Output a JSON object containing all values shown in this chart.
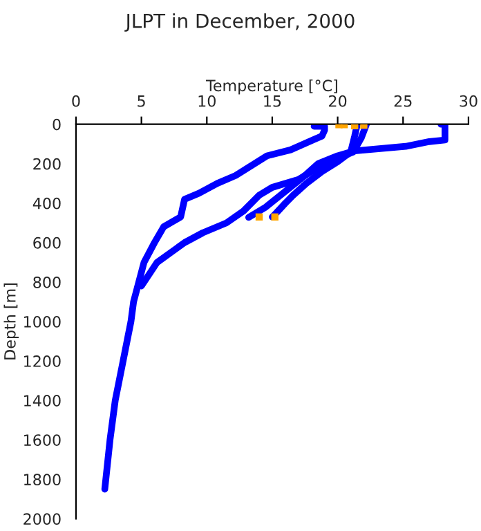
{
  "chart_data": {
    "type": "line",
    "title": "JLPT in December, 2000",
    "xlabel": "Temperature [°C]",
    "ylabel": "Depth [m]",
    "xlim": [
      0,
      30
    ],
    "xticks": [
      0,
      5,
      10,
      15,
      20,
      25,
      30
    ],
    "ylim": [
      2000,
      0
    ],
    "yticks": [
      0,
      200,
      400,
      600,
      800,
      1000,
      1200,
      1400,
      1600,
      1800,
      2000
    ],
    "grid": false,
    "legend": false,
    "marker": "none",
    "line_style": "solid",
    "series": [
      {
        "color": "#0000ff",
        "x": [
          18.2,
          19.0,
          19.0,
          18.8,
          18.1,
          16.4,
          14.6,
          13.4,
          12.2,
          10.8,
          9.4,
          8.3,
          8.0,
          6.7,
          6.0,
          5.2,
          4.8,
          4.4,
          4.2,
          3.9,
          3.6,
          3.3,
          3.0,
          2.6,
          2.2
        ],
        "values": [
          10,
          10,
          30,
          60,
          80,
          130,
          160,
          210,
          260,
          300,
          350,
          380,
          470,
          520,
          600,
          700,
          800,
          900,
          1000,
          1100,
          1200,
          1300,
          1400,
          1600,
          1850
        ]
      },
      {
        "color": "#0000ff",
        "x": [
          27.9,
          28.2,
          28.2,
          27.0,
          25.2,
          21.3,
          20.0,
          18.5,
          17.5,
          16.0,
          14.5,
          13.2
        ],
        "values": [
          0,
          0,
          80,
          88,
          112,
          135,
          160,
          200,
          260,
          340,
          420,
          472
        ]
      },
      {
        "color": "#0000ff",
        "x": [
          21.5,
          21.3,
          21.0,
          20.0,
          18.8,
          17.6,
          16.6,
          16.0,
          15.3,
          15.0
        ],
        "values": [
          0,
          60,
          140,
          190,
          240,
          300,
          360,
          400,
          450,
          470
        ]
      },
      {
        "color": "#0000ff",
        "x": [
          22.2,
          21.8,
          21.2,
          19.0,
          17.0,
          15.0,
          14.0,
          12.8,
          11.5,
          9.7,
          8.3,
          6.2,
          5.0
        ],
        "values": [
          0,
          70,
          140,
          200,
          280,
          320,
          360,
          440,
          500,
          550,
          600,
          700,
          820
        ]
      },
      {
        "type": "scatter",
        "marker": "square",
        "color": "#ffa500",
        "x": [
          20.1,
          20.5,
          21.3,
          22.0,
          14.0,
          15.2
        ],
        "values": [
          2,
          2,
          7,
          5,
          470,
          470
        ]
      }
    ]
  }
}
